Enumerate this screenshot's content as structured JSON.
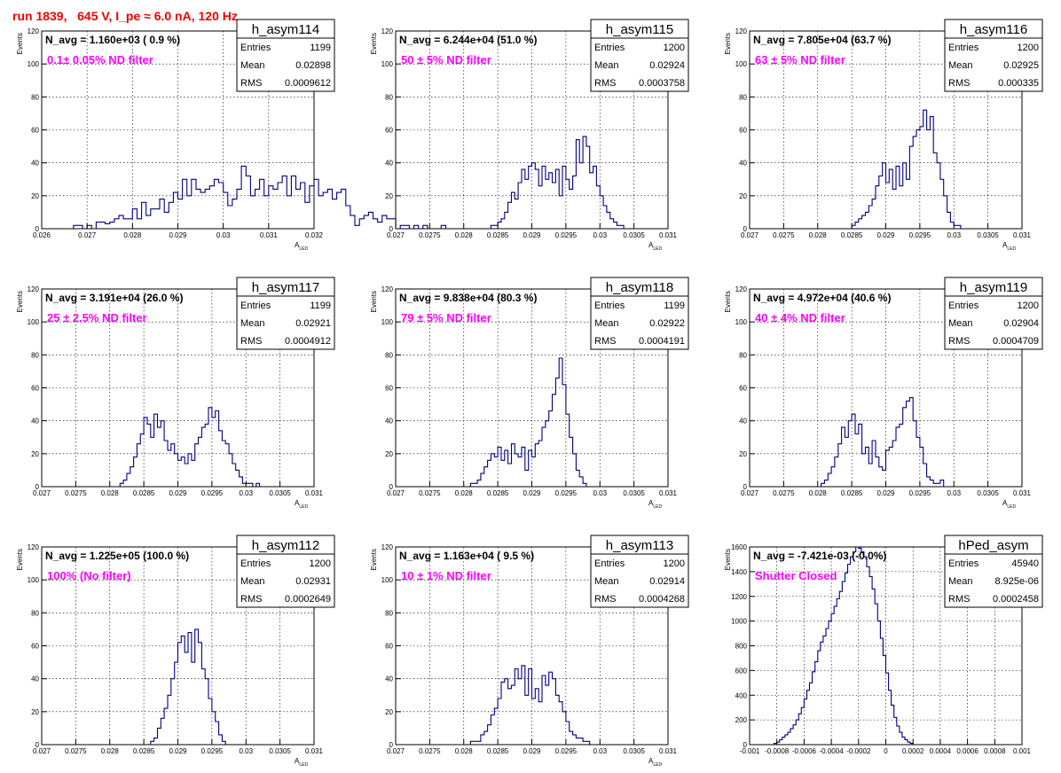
{
  "page_title": "run 1839,   645 V, I_pe ≈ 6.0 nA, 120 Hz",
  "colors": {
    "title": "#ee0000",
    "line": "#000080",
    "annotation": "#ff00ff"
  },
  "chart_data": [
    {
      "type": "bar",
      "name": "h_asym114",
      "stats": {
        "entries_label": "Entries",
        "entries": "1199",
        "mean_label": "Mean",
        "mean": "0.02898",
        "rms_label": "RMS",
        "rms": "0.0009612"
      },
      "n_avg": "N_avg = 1.160e+03 ( 0.9 %)",
      "note": "0.1± 0.05% ND filter",
      "xlabel": "A",
      "xlabel_sub": "LED",
      "ylabel": "Events",
      "xlim": [
        0.026,
        0.032
      ],
      "ylim": [
        0,
        120
      ],
      "xticks": [
        0.026,
        0.027,
        0.028,
        0.029,
        0.03,
        0.031,
        0.032
      ],
      "xticklabels": [
        "0.026",
        "0.027",
        "0.028",
        "0.029",
        "0.03",
        "0.031",
        "0.032"
      ],
      "yticks": [
        0,
        20,
        40,
        60,
        80,
        100,
        120
      ],
      "yticklabels": [
        "0",
        "20",
        "40",
        "60",
        "80",
        "100",
        "120"
      ],
      "bin_start": 0.026,
      "bin_width": 0.0001,
      "values": [
        0,
        0,
        0,
        0,
        0,
        0,
        0,
        2,
        2,
        0,
        2,
        0,
        4,
        4,
        3,
        4,
        6,
        8,
        6,
        6,
        12,
        6,
        16,
        8,
        12,
        12,
        18,
        10,
        16,
        22,
        18,
        30,
        20,
        30,
        24,
        22,
        24,
        26,
        30,
        28,
        22,
        14,
        18,
        24,
        38,
        32,
        20,
        24,
        30,
        20,
        26,
        24,
        28,
        32,
        20,
        32,
        24,
        28,
        16,
        26,
        30,
        20,
        22,
        24,
        18,
        22,
        24,
        14,
        8,
        2,
        6,
        8,
        10,
        6,
        4,
        8,
        6,
        6,
        0,
        2,
        2,
        0,
        2,
        0,
        2,
        0,
        0,
        0,
        2,
        0,
        0
      ]
    },
    {
      "type": "bar",
      "name": "h_asym115",
      "stats": {
        "entries_label": "Entries",
        "entries": "1200",
        "mean_label": "Mean",
        "mean": "0.02924",
        "rms_label": "RMS",
        "rms": "0.0003758"
      },
      "n_avg": "N_avg = 6.244e+04 (51.0 %)",
      "note": " 50 ± 5% ND filter",
      "xlabel": "A",
      "xlabel_sub": "LED",
      "ylabel": "Events",
      "xlim": [
        0.027,
        0.031
      ],
      "ylim": [
        0,
        120
      ],
      "xticks": [
        0.027,
        0.0275,
        0.028,
        0.0285,
        0.029,
        0.0295,
        0.03,
        0.0305,
        0.031
      ],
      "xticklabels": [
        "0.027",
        "0.0275",
        "0.028",
        "0.0285",
        "0.029",
        "0.0295",
        "0.03",
        "0.0305",
        "0.031"
      ],
      "yticks": [
        0,
        20,
        40,
        60,
        80,
        100,
        120
      ],
      "yticklabels": [
        "0",
        "20",
        "40",
        "60",
        "80",
        "100",
        "120"
      ],
      "bin_start": 0.027,
      "bin_width": 5e-05,
      "values": [
        0,
        0,
        0,
        0,
        0,
        0,
        0,
        0,
        0,
        0,
        0,
        0,
        0,
        0,
        0,
        0,
        0,
        0,
        0,
        0,
        0,
        0,
        0,
        0,
        0,
        0,
        0,
        0,
        2,
        2,
        4,
        6,
        10,
        16,
        22,
        18,
        28,
        36,
        30,
        38,
        40,
        36,
        26,
        38,
        30,
        34,
        28,
        36,
        20,
        38,
        30,
        24,
        32,
        54,
        40,
        56,
        50,
        34,
        38,
        26,
        20,
        14,
        10,
        6,
        4,
        2,
        2,
        0,
        0,
        0,
        0,
        0,
        0,
        0,
        0,
        0,
        0,
        0,
        0,
        0
      ]
    },
    {
      "type": "bar",
      "name": "h_asym116",
      "stats": {
        "entries_label": "Entries",
        "entries": "1200",
        "mean_label": "Mean",
        "mean": "0.02925",
        "rms_label": "RMS",
        "rms": "0.000335"
      },
      "n_avg": "N_avg = 7.805e+04 (63.7 %)",
      "note": " 63 ± 5% ND filter",
      "xlabel": "A",
      "xlabel_sub": "LED",
      "ylabel": "Events",
      "xlim": [
        0.027,
        0.031
      ],
      "ylim": [
        0,
        120
      ],
      "xticks": [
        0.027,
        0.0275,
        0.028,
        0.0285,
        0.029,
        0.0295,
        0.03,
        0.0305,
        0.031
      ],
      "xticklabels": [
        "0.027",
        "0.0275",
        "0.028",
        "0.0285",
        "0.029",
        "0.0295",
        "0.03",
        "0.0305",
        "0.031"
      ],
      "yticks": [
        0,
        20,
        40,
        60,
        80,
        100,
        120
      ],
      "yticklabels": [
        "0",
        "20",
        "40",
        "60",
        "80",
        "100",
        "120"
      ],
      "bin_start": 0.027,
      "bin_width": 5e-05,
      "values": [
        0,
        0,
        0,
        0,
        0,
        0,
        0,
        0,
        0,
        0,
        0,
        0,
        0,
        0,
        0,
        0,
        0,
        0,
        0,
        0,
        0,
        0,
        0,
        0,
        0,
        0,
        0,
        0,
        0,
        0,
        2,
        4,
        6,
        8,
        10,
        14,
        18,
        26,
        32,
        40,
        28,
        36,
        24,
        38,
        26,
        40,
        30,
        50,
        56,
        60,
        62,
        72,
        60,
        68,
        46,
        40,
        30,
        20,
        10,
        4,
        2,
        2,
        0,
        0,
        0,
        0,
        0,
        0,
        0,
        0,
        0,
        0,
        0,
        0,
        0,
        0,
        0,
        0,
        0,
        0
      ]
    },
    {
      "type": "bar",
      "name": "h_asym117",
      "stats": {
        "entries_label": "Entries",
        "entries": "1199",
        "mean_label": "Mean",
        "mean": "0.02921",
        "rms_label": "RMS",
        "rms": "0.0004912"
      },
      "n_avg": "N_avg = 3.191e+04 (26.0 %)",
      "note": " 25 ± 2.5% ND filter",
      "xlabel": "A",
      "xlabel_sub": "LED",
      "ylabel": "Events",
      "xlim": [
        0.027,
        0.031
      ],
      "ylim": [
        0,
        120
      ],
      "xticks": [
        0.027,
        0.0275,
        0.028,
        0.0285,
        0.029,
        0.0295,
        0.03,
        0.0305,
        0.031
      ],
      "xticklabels": [
        "0.027",
        "0.0275",
        "0.028",
        "0.0285",
        "0.029",
        "0.0295",
        "0.03",
        "0.0305",
        "0.031"
      ],
      "yticks": [
        0,
        20,
        40,
        60,
        80,
        100,
        120
      ],
      "yticklabels": [
        "0",
        "20",
        "40",
        "60",
        "80",
        "100",
        "120"
      ],
      "bin_start": 0.027,
      "bin_width": 5e-05,
      "values": [
        0,
        0,
        0,
        0,
        0,
        0,
        0,
        0,
        0,
        0,
        0,
        0,
        0,
        0,
        0,
        0,
        0,
        0,
        0,
        0,
        0,
        0,
        0,
        2,
        4,
        8,
        12,
        18,
        26,
        32,
        42,
        38,
        30,
        44,
        36,
        40,
        28,
        22,
        26,
        20,
        16,
        18,
        14,
        20,
        16,
        26,
        30,
        36,
        38,
        48,
        42,
        46,
        34,
        28,
        26,
        20,
        14,
        10,
        6,
        2,
        2,
        2,
        0,
        2,
        0,
        0,
        0,
        0,
        0,
        0,
        0,
        0,
        0,
        0,
        0,
        0,
        0,
        0,
        0,
        0
      ]
    },
    {
      "type": "bar",
      "name": "h_asym118",
      "stats": {
        "entries_label": "Entries",
        "entries": "1199",
        "mean_label": "Mean",
        "mean": "0.02922",
        "rms_label": "RMS",
        "rms": "0.0004191"
      },
      "n_avg": "N_avg = 9.838e+04 (80.3 %)",
      "note": " 79 ± 5% ND filter",
      "xlabel": "A",
      "xlabel_sub": "LED",
      "ylabel": "Events",
      "xlim": [
        0.027,
        0.031
      ],
      "ylim": [
        0,
        120
      ],
      "xticks": [
        0.027,
        0.0275,
        0.028,
        0.0285,
        0.029,
        0.0295,
        0.03,
        0.0305,
        0.031
      ],
      "xticklabels": [
        "0.027",
        "0.0275",
        "0.028",
        "0.0285",
        "0.029",
        "0.0295",
        "0.03",
        "0.0305",
        "0.031"
      ],
      "yticks": [
        0,
        20,
        40,
        60,
        80,
        100,
        120
      ],
      "yticklabels": [
        "0",
        "20",
        "40",
        "60",
        "80",
        "100",
        "120"
      ],
      "bin_start": 0.027,
      "bin_width": 5e-05,
      "values": [
        0,
        0,
        0,
        0,
        0,
        0,
        0,
        0,
        0,
        0,
        0,
        0,
        0,
        0,
        0,
        0,
        0,
        0,
        0,
        0,
        0,
        0,
        2,
        2,
        4,
        8,
        12,
        16,
        20,
        18,
        24,
        16,
        22,
        14,
        26,
        20,
        18,
        24,
        10,
        22,
        18,
        26,
        28,
        36,
        40,
        46,
        56,
        66,
        78,
        62,
        44,
        30,
        20,
        10,
        6,
        2,
        0,
        0,
        0,
        0,
        0,
        0,
        0,
        0,
        0,
        0,
        0,
        0,
        0,
        0,
        0,
        0,
        0,
        0,
        0,
        0,
        0,
        0,
        0,
        0
      ]
    },
    {
      "type": "bar",
      "name": "h_asym119",
      "stats": {
        "entries_label": "Entries",
        "entries": "1200",
        "mean_label": "Mean",
        "mean": "0.02904",
        "rms_label": "RMS",
        "rms": "0.0004709"
      },
      "n_avg": "N_avg = 4.972e+04 (40.6 %)",
      "note": " 40 ± 4% ND filter",
      "xlabel": "A",
      "xlabel_sub": "LED",
      "ylabel": "Events",
      "xlim": [
        0.027,
        0.031
      ],
      "ylim": [
        0,
        120
      ],
      "xticks": [
        0.027,
        0.0275,
        0.028,
        0.0285,
        0.029,
        0.0295,
        0.03,
        0.0305,
        0.031
      ],
      "xticklabels": [
        "0.027",
        "0.0275",
        "0.028",
        "0.0285",
        "0.029",
        "0.0295",
        "0.03",
        "0.0305",
        "0.031"
      ],
      "yticks": [
        0,
        20,
        40,
        60,
        80,
        100,
        120
      ],
      "yticklabels": [
        "0",
        "20",
        "40",
        "60",
        "80",
        "100",
        "120"
      ],
      "bin_start": 0.027,
      "bin_width": 5e-05,
      "values": [
        0,
        0,
        0,
        0,
        0,
        0,
        0,
        0,
        0,
        0,
        0,
        0,
        0,
        0,
        0,
        0,
        0,
        0,
        0,
        0,
        0,
        2,
        4,
        8,
        12,
        18,
        26,
        36,
        30,
        40,
        44,
        32,
        38,
        20,
        24,
        14,
        28,
        18,
        12,
        10,
        22,
        24,
        28,
        36,
        38,
        48,
        52,
        54,
        40,
        30,
        24,
        14,
        6,
        4,
        2,
        2,
        4,
        0,
        0,
        0,
        0,
        0,
        0,
        0,
        0,
        0,
        0,
        0,
        0,
        0,
        0,
        0,
        0,
        0,
        0,
        0,
        0,
        0,
        0,
        0
      ]
    },
    {
      "type": "bar",
      "name": "h_asym112",
      "stats": {
        "entries_label": "Entries",
        "entries": "1200",
        "mean_label": "Mean",
        "mean": "0.02931",
        "rms_label": "RMS",
        "rms": "0.0002649"
      },
      "n_avg": "N_avg = 1.225e+05 (100.0 %)",
      "note": " 100% (No filter)",
      "xlabel": "A",
      "xlabel_sub": "LED",
      "ylabel": "Events",
      "xlim": [
        0.027,
        0.031
      ],
      "ylim": [
        0,
        120
      ],
      "xticks": [
        0.027,
        0.0275,
        0.028,
        0.0285,
        0.029,
        0.0295,
        0.03,
        0.0305,
        0.031
      ],
      "xticklabels": [
        "0.027",
        "0.0275",
        "0.028",
        "0.0285",
        "0.029",
        "0.0295",
        "0.03",
        "0.0305",
        "0.031"
      ],
      "yticks": [
        0,
        20,
        40,
        60,
        80,
        100,
        120
      ],
      "yticklabels": [
        "0",
        "20",
        "40",
        "60",
        "80",
        "100",
        "120"
      ],
      "bin_start": 0.027,
      "bin_width": 5e-05,
      "values": [
        0,
        0,
        0,
        0,
        0,
        0,
        0,
        0,
        0,
        0,
        0,
        0,
        0,
        0,
        0,
        0,
        0,
        0,
        0,
        0,
        0,
        0,
        0,
        0,
        0,
        0,
        0,
        0,
        0,
        0,
        0,
        0,
        2,
        4,
        10,
        16,
        22,
        30,
        40,
        50,
        62,
        66,
        56,
        68,
        50,
        70,
        62,
        46,
        40,
        28,
        20,
        14,
        6,
        2,
        0,
        0,
        0,
        0,
        0,
        0,
        0,
        0,
        0,
        0,
        0,
        0,
        0,
        0,
        0,
        0,
        0,
        0,
        0,
        0,
        0,
        0,
        0,
        0,
        0,
        0
      ]
    },
    {
      "type": "bar",
      "name": "h_asym113",
      "stats": {
        "entries_label": "Entries",
        "entries": "1200",
        "mean_label": "Mean",
        "mean": "0.02914",
        "rms_label": "RMS",
        "rms": "0.0004268"
      },
      "n_avg": "N_avg = 1.163e+04 ( 9.5 %)",
      "note": " 10 ± 1% ND filter",
      "xlabel": "A",
      "xlabel_sub": "LED",
      "ylabel": "Events",
      "xlim": [
        0.027,
        0.031
      ],
      "ylim": [
        0,
        120
      ],
      "xticks": [
        0.027,
        0.0275,
        0.028,
        0.0285,
        0.029,
        0.0295,
        0.03,
        0.0305,
        0.031
      ],
      "xticklabels": [
        "0.027",
        "0.0275",
        "0.028",
        "0.0285",
        "0.029",
        "0.0295",
        "0.03",
        "0.0305",
        "0.031"
      ],
      "yticks": [
        0,
        20,
        40,
        60,
        80,
        100,
        120
      ],
      "yticklabels": [
        "0",
        "20",
        "40",
        "60",
        "80",
        "100",
        "120"
      ],
      "bin_start": 0.027,
      "bin_width": 5e-05,
      "values": [
        0,
        0,
        0,
        0,
        0,
        0,
        0,
        0,
        0,
        0,
        0,
        0,
        0,
        0,
        0,
        0,
        0,
        0,
        0,
        0,
        0,
        0,
        2,
        2,
        2,
        6,
        8,
        12,
        18,
        22,
        28,
        38,
        40,
        34,
        36,
        46,
        40,
        48,
        30,
        46,
        28,
        34,
        26,
        42,
        36,
        44,
        40,
        30,
        26,
        20,
        14,
        8,
        6,
        4,
        4,
        2,
        2,
        0,
        0,
        0,
        0,
        0,
        0,
        0,
        0,
        0,
        0,
        0,
        0,
        0,
        0,
        0,
        0,
        0,
        0,
        0,
        0,
        0,
        0,
        0
      ]
    },
    {
      "type": "bar",
      "name": "hPed_asym",
      "stats": {
        "entries_label": "Entries",
        "entries": "45940",
        "mean_label": "Mean",
        "mean": "8.925e-06",
        "rms_label": "RMS",
        "rms": "0.0002458"
      },
      "n_avg": "N_avg = -7.421e-03 (-0.0%)",
      "note": "Shutter Closed",
      "xlabel": "",
      "xlabel_sub": "",
      "ylabel": "Events",
      "xlim": [
        -0.001,
        0.001
      ],
      "ylim": [
        0,
        1600
      ],
      "xticks": [
        -0.001,
        -0.0008,
        -0.0006,
        -0.0004,
        -0.0002,
        0,
        0.0002,
        0.0004,
        0.0006,
        0.0008,
        0.001
      ],
      "xticklabels": [
        "-0.001",
        "-0.0008",
        "-0.0006",
        "-0.0004",
        "-0.0002",
        "0",
        "0.0002",
        "0.0004",
        "0.0006",
        "0.0008",
        "0.001"
      ],
      "yticks": [
        0,
        200,
        400,
        600,
        800,
        1000,
        1200,
        1400,
        1600
      ],
      "yticklabels": [
        "0",
        "200",
        "400",
        "600",
        "800",
        "1000",
        "1200",
        "1400",
        "1600"
      ],
      "bin_start": -0.001,
      "bin_width": 2e-05,
      "values": [
        0,
        0,
        0,
        0,
        0,
        0,
        0,
        0,
        0,
        10,
        20,
        40,
        60,
        80,
        100,
        130,
        160,
        200,
        250,
        300,
        370,
        440,
        500,
        590,
        670,
        760,
        830,
        880,
        940,
        1000,
        1060,
        1120,
        1180,
        1240,
        1320,
        1390,
        1460,
        1520,
        1560,
        1600,
        1590,
        1560,
        1520,
        1440,
        1360,
        1260,
        1140,
        1000,
        860,
        720,
        580,
        440,
        320,
        220,
        150,
        100,
        60,
        40,
        20,
        10,
        0,
        0,
        0,
        0,
        0,
        0,
        0,
        0,
        0,
        0,
        0,
        0,
        0,
        0,
        0,
        0,
        0,
        0,
        0,
        0,
        0,
        0,
        0,
        0,
        0,
        0,
        0,
        0,
        0,
        0,
        0,
        0,
        0,
        0,
        0,
        0,
        0,
        0,
        0,
        0
      ]
    }
  ]
}
